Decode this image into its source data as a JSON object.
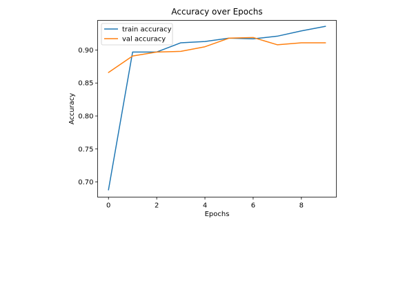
{
  "chart_data": {
    "type": "line",
    "title": "Accuracy over Epochs",
    "xlabel": "Epochs",
    "ylabel": "Accuracy",
    "x": [
      0,
      1,
      2,
      3,
      4,
      5,
      6,
      7,
      8,
      9
    ],
    "xlim": [
      -0.45,
      9.45
    ],
    "ylim": [
      0.677,
      0.945
    ],
    "xticks": [
      0,
      2,
      4,
      6,
      8
    ],
    "xtick_labels": [
      "0",
      "2",
      "4",
      "6",
      "8"
    ],
    "yticks": [
      0.7,
      0.75,
      0.8,
      0.85,
      0.9
    ],
    "ytick_labels": [
      "0.70",
      "0.75",
      "0.80",
      "0.85",
      "0.90"
    ],
    "grid": false,
    "legend_position": "top-left",
    "series": [
      {
        "name": "train accuracy",
        "color": "#1f77b4",
        "values": [
          0.688,
          0.897,
          0.897,
          0.911,
          0.913,
          0.918,
          0.917,
          0.921,
          0.929,
          0.936
        ]
      },
      {
        "name": "val accuracy",
        "color": "#ff7f0e",
        "values": [
          0.866,
          0.891,
          0.897,
          0.898,
          0.905,
          0.918,
          0.919,
          0.908,
          0.911,
          0.911
        ]
      }
    ]
  }
}
